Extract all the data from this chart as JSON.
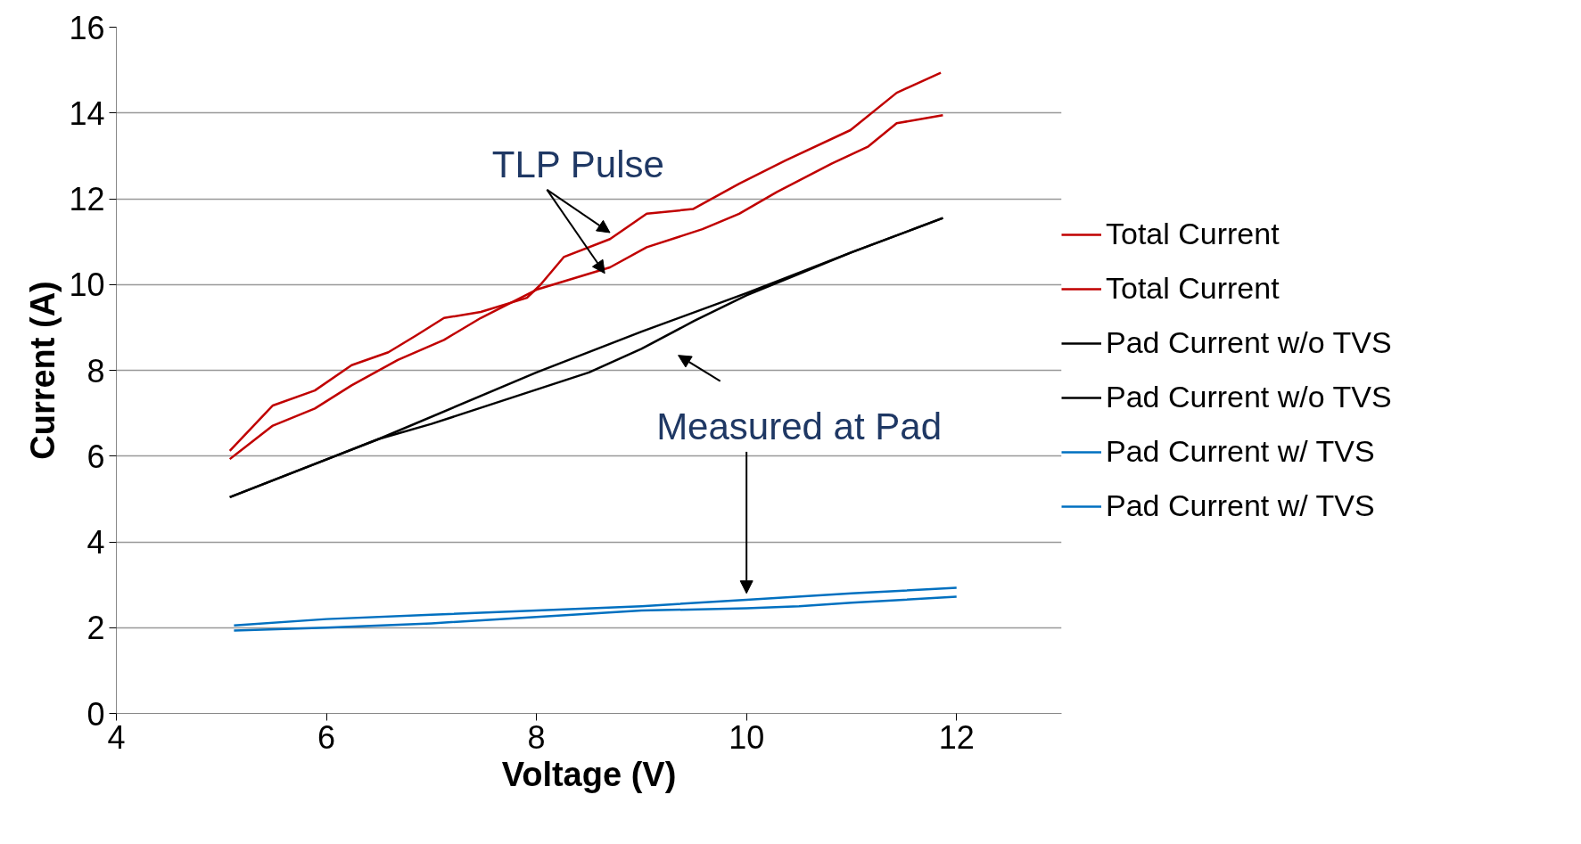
{
  "chart_data": {
    "type": "line",
    "xlabel": "Voltage (V)",
    "ylabel": "Current (A)",
    "xlim": [
      4,
      13
    ],
    "ylim": [
      0,
      16
    ],
    "xticks": [
      4,
      6,
      8,
      10,
      12
    ],
    "yticks": [
      0,
      2,
      4,
      6,
      8,
      10,
      12,
      14,
      16
    ],
    "grid": "y",
    "legend": "right",
    "marker": "none",
    "line_style": "solid",
    "annotations": [
      {
        "text": "TLP Pulse",
        "x": 8.7,
        "y": 11.06
      },
      {
        "text": "Measured at Pad",
        "x": 10.0,
        "y": 2.65
      }
    ],
    "series": [
      {
        "name": "Total Current",
        "color": "#c00000",
        "x": [
          5.08,
          5.49,
          5.89,
          6.24,
          6.59,
          6.86,
          7.12,
          7.47,
          7.91,
          8.04,
          8.26,
          8.7,
          9.05,
          9.49,
          9.93,
          10.37,
          10.99,
          11.43,
          11.85
        ],
        "values": [
          6.12,
          7.18,
          7.53,
          8.12,
          8.42,
          8.82,
          9.22,
          9.36,
          9.69,
          10.0,
          10.64,
          11.06,
          11.65,
          11.76,
          12.35,
          12.89,
          13.6,
          14.47,
          14.94
        ]
      },
      {
        "name": "Total Current",
        "color": "#c00000",
        "x": [
          5.08,
          5.49,
          5.89,
          6.24,
          6.68,
          7.12,
          7.47,
          8.0,
          8.7,
          9.05,
          9.58,
          9.93,
          10.29,
          10.81,
          11.16,
          11.43,
          11.87
        ],
        "values": [
          5.93,
          6.71,
          7.11,
          7.65,
          8.24,
          8.71,
          9.22,
          9.88,
          10.4,
          10.87,
          11.29,
          11.65,
          12.16,
          12.82,
          13.22,
          13.76,
          13.95
        ]
      },
      {
        "name": "Pad Current w/o TVS",
        "color": "#000000",
        "x": [
          5.08,
          6.5,
          8.0,
          9.0,
          10.0,
          11.0,
          11.87
        ],
        "values": [
          5.04,
          6.4,
          7.95,
          8.9,
          9.8,
          10.75,
          11.55
        ]
      },
      {
        "name": "Pad Current w/o TVS",
        "color": "#000000",
        "x": [
          5.08,
          6.5,
          7.0,
          8.0,
          8.5,
          9.0,
          9.5,
          10.0,
          10.5,
          11.0,
          11.87
        ],
        "values": [
          5.04,
          6.4,
          6.75,
          7.55,
          7.95,
          8.5,
          9.15,
          9.75,
          10.25,
          10.75,
          11.55
        ]
      },
      {
        "name": "Pad Current w/ TVS",
        "color": "#0070c0",
        "x": [
          5.12,
          6,
          7,
          8,
          9,
          10,
          11,
          12
        ],
        "values": [
          2.05,
          2.2,
          2.3,
          2.4,
          2.5,
          2.65,
          2.8,
          2.93
        ]
      },
      {
        "name": "Pad Current w/ TVS",
        "color": "#0070c0",
        "x": [
          5.12,
          6,
          7,
          8,
          9,
          10,
          10.5,
          11,
          12
        ],
        "values": [
          1.93,
          2.0,
          2.1,
          2.25,
          2.4,
          2.45,
          2.5,
          2.58,
          2.72
        ]
      }
    ]
  }
}
